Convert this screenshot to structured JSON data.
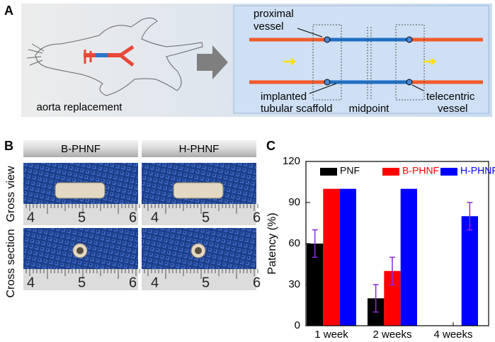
{
  "panel_a": {
    "label": "A",
    "caption": "aorta replacement",
    "proximal": [
      "proximal",
      "vessel"
    ],
    "implanted": [
      "implanted",
      "tubular scaffold"
    ],
    "midpoint": "midpoint",
    "telecentric": [
      "telecentric",
      "vessel"
    ]
  },
  "panel_b": {
    "label": "B",
    "columns": [
      "B-PHNF",
      "H-PHNF"
    ],
    "rows": [
      "Gross view",
      "Cross section"
    ],
    "ruler_labels": [
      "4",
      "5",
      "6"
    ]
  },
  "chart_data": {
    "type": "bar",
    "panel_label": "C",
    "ylabel": "Patency (%)",
    "categories": [
      "1 week",
      "2 weeks",
      "4 weeks"
    ],
    "series": [
      {
        "name": "PNF",
        "color": "#000000",
        "values": [
          60,
          20,
          0
        ],
        "errors": [
          10,
          10,
          null
        ]
      },
      {
        "name": "B-PHNF",
        "color": "#ff0000",
        "values": [
          100,
          40,
          0
        ],
        "errors": [
          null,
          10,
          null
        ]
      },
      {
        "name": "H-PHNF",
        "color": "#0000ff",
        "values": [
          100,
          100,
          80
        ],
        "errors": [
          null,
          null,
          10
        ]
      }
    ],
    "error_color": "#8a2be2",
    "ylim": [
      0,
      120
    ],
    "yticks": [
      0,
      30,
      60,
      90,
      120
    ],
    "legend": "top"
  }
}
